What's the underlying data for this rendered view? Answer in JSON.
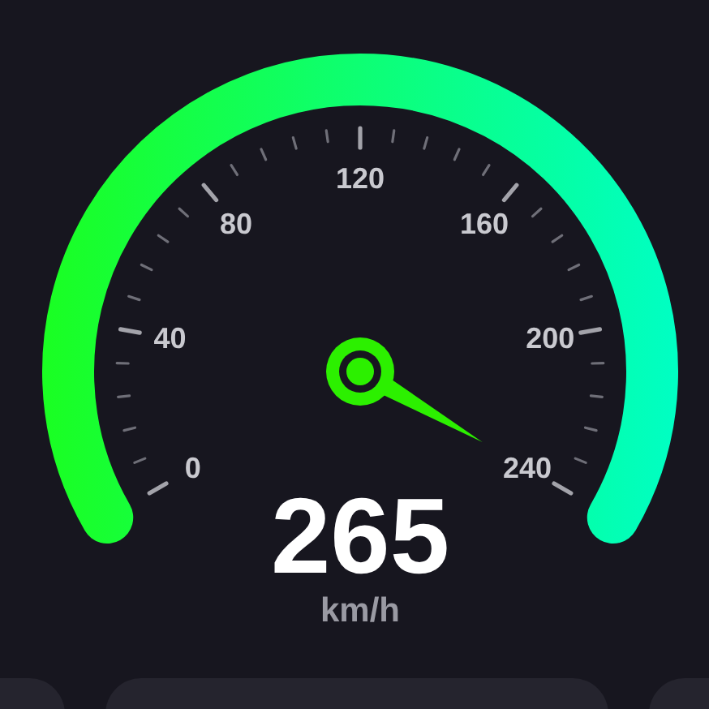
{
  "chart_data": {
    "type": "other",
    "values": [
      265
    ],
    "data_labels": true,
    "ylabel": "km/h",
    "color": "#2cf000",
    "annotations": [
      "0",
      "40",
      "80",
      "120",
      "160",
      "200",
      "240"
    ]
  }
}
